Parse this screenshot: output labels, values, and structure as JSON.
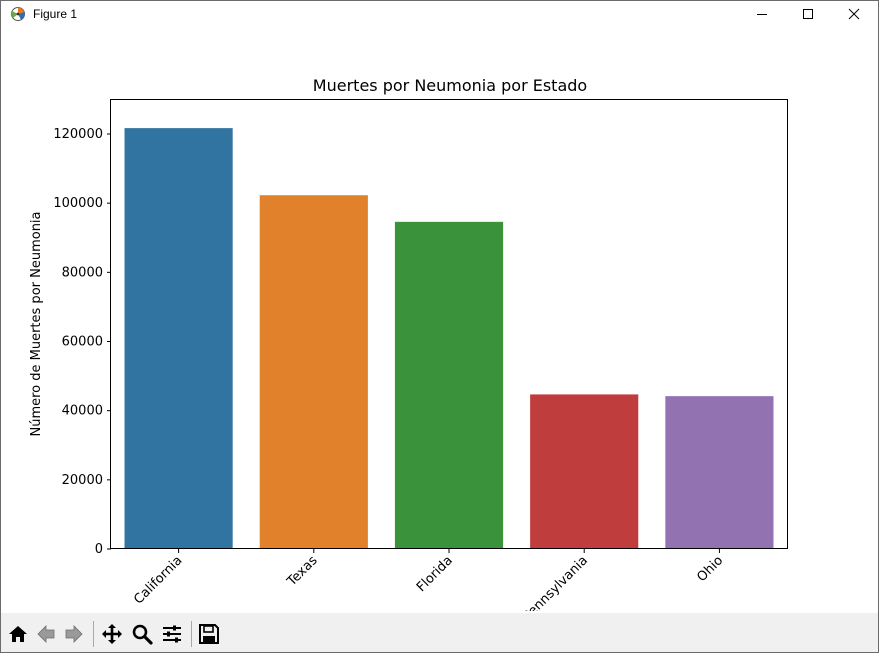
{
  "window": {
    "title": "Figure 1",
    "app_icon": "matplotlib-figure-icon",
    "controls": [
      "minimize-icon",
      "maximize-icon",
      "close-icon"
    ]
  },
  "toolbar": {
    "buttons": [
      {
        "name": "home-icon",
        "label": "Home"
      },
      {
        "name": "back-arrow-icon",
        "label": "Back"
      },
      {
        "name": "forward-arrow-icon",
        "label": "Forward"
      },
      {
        "name": "pan-icon",
        "label": "Pan"
      },
      {
        "name": "zoom-icon",
        "label": "Zoom"
      },
      {
        "name": "configure-subplots-icon",
        "label": "Configure subplots"
      },
      {
        "name": "save-icon",
        "label": "Save"
      }
    ]
  },
  "chart_data": {
    "type": "bar",
    "title": "Muertes por Neumonia por Estado",
    "xlabel": "",
    "ylabel": "Número de Muertes por Neumonia",
    "categories": [
      "California",
      "Texas",
      "Florida",
      "Pennsylvania",
      "Ohio"
    ],
    "values": [
      121700,
      102300,
      94600,
      44700,
      44200
    ],
    "colors": [
      "#3274a1",
      "#e1812c",
      "#3a923a",
      "#c03d3e",
      "#9372b2"
    ],
    "ylim": [
      0,
      130000
    ],
    "yticks": [
      0,
      20000,
      40000,
      60000,
      80000,
      100000,
      120000
    ],
    "xtick_rotation": 45,
    "grid": false,
    "legend": false
  }
}
